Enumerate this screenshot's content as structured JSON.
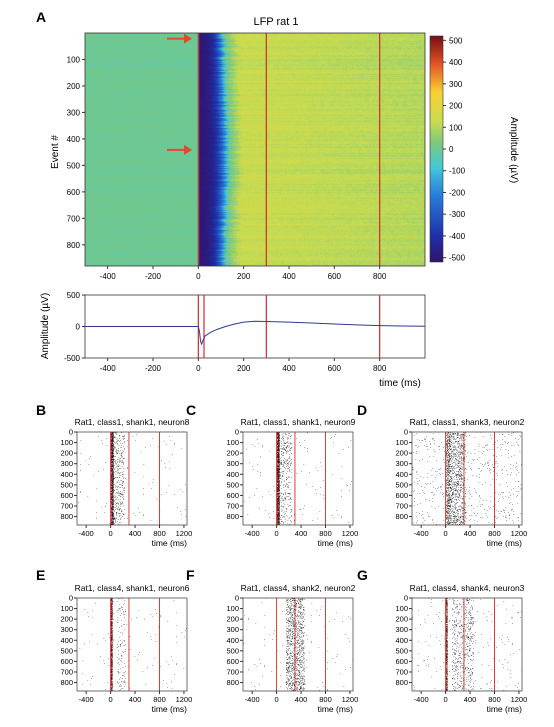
{
  "panel_labels": [
    "A",
    "B",
    "C",
    "D",
    "E",
    "F",
    "G"
  ],
  "colors": {
    "vlines": "#d42a2a",
    "arrow": "#e3482f",
    "trace": "#2b3d8f"
  },
  "chart_data": [
    {
      "id": "A-heatmap",
      "type": "heatmap",
      "title": "LFP rat 1",
      "xlabel": "",
      "ylabel": "Event #",
      "xlim": [
        -500,
        1000
      ],
      "ylim": [
        0,
        880
      ],
      "xticks": [
        -400,
        -200,
        0,
        200,
        400,
        600,
        800
      ],
      "yticks": [
        100,
        200,
        300,
        400,
        500,
        600,
        700,
        800
      ],
      "vlines_ms": [
        0,
        300,
        800
      ],
      "arrow_events": [
        10,
        430
      ],
      "colorbar": {
        "label": "Amplitude (µV)",
        "ticks": [
          500,
          400,
          300,
          200,
          100,
          0,
          -100,
          -200,
          -300,
          -400,
          -500
        ],
        "range": [
          -520,
          520
        ],
        "colormap": "jet"
      },
      "profile": {
        "baseline_uv": 0,
        "onset_ms": 0,
        "negative_peak_uv": -500,
        "negative_until_ms": 120,
        "positive_plateau_uv": 130
      }
    },
    {
      "id": "A-trace",
      "type": "line",
      "xlabel": "time (ms)",
      "ylabel": "Amplitude (µV)",
      "xlim": [
        -500,
        1000
      ],
      "ylim": [
        -500,
        500
      ],
      "xticks": [
        -400,
        -200,
        0,
        200,
        400,
        600,
        800
      ],
      "yticks": [
        500,
        0,
        -500
      ],
      "vlines_ms": [
        0,
        25,
        300,
        800
      ],
      "series": [
        {
          "x": [
            -500,
            -100,
            0,
            5,
            10,
            15,
            20,
            30,
            50,
            80,
            120,
            160,
            200,
            250,
            300,
            400,
            500,
            600,
            700,
            800,
            900,
            1000
          ],
          "y": [
            0,
            0,
            0,
            -80,
            -240,
            -280,
            -220,
            -150,
            -100,
            -50,
            0,
            40,
            70,
            82,
            80,
            70,
            55,
            40,
            25,
            15,
            8,
            5
          ]
        }
      ]
    },
    {
      "id": "B",
      "type": "scatter",
      "title": "Rat1, class1, shank1, neuron8",
      "xlabel": "time (ms)",
      "xlim": [
        -550,
        1250
      ],
      "ylim": [
        0,
        880
      ],
      "xticks": [
        -400,
        0,
        400,
        800,
        1200
      ],
      "yticks": [
        0,
        100,
        200,
        300,
        400,
        500,
        600,
        700,
        800
      ],
      "vlines_ms": [
        0,
        300,
        800
      ],
      "baseline_rate": 0.007,
      "density": [
        [
          0,
          40,
          1.0
        ],
        [
          40,
          220,
          0.1
        ]
      ]
    },
    {
      "id": "C",
      "type": "scatter",
      "title": "Rat1, class1, shank1, neuron9",
      "xlabel": "time (ms)",
      "xlim": [
        -550,
        1250
      ],
      "ylim": [
        0,
        880
      ],
      "xticks": [
        -400,
        0,
        400,
        800,
        1200
      ],
      "yticks": [
        0,
        100,
        200,
        300,
        400,
        500,
        600,
        700,
        800
      ],
      "vlines_ms": [
        0,
        300,
        800
      ],
      "baseline_rate": 0.008,
      "density": [
        [
          0,
          40,
          1.0
        ],
        [
          40,
          250,
          0.08
        ]
      ]
    },
    {
      "id": "D",
      "type": "scatter",
      "title": "Rat1, class1, shank3, neuron2",
      "xlabel": "time (ms)",
      "xlim": [
        -550,
        1250
      ],
      "ylim": [
        0,
        880
      ],
      "xticks": [
        -400,
        0,
        400,
        800,
        1200
      ],
      "yticks": [
        0,
        100,
        200,
        300,
        400,
        500,
        600,
        700,
        800
      ],
      "vlines_ms": [
        0,
        300,
        800
      ],
      "baseline_rate": 0.035,
      "density": [
        [
          0,
          80,
          0.35
        ],
        [
          80,
          320,
          0.18
        ]
      ]
    },
    {
      "id": "E",
      "type": "scatter",
      "title": "Rat1, class4, shank1, neuron6",
      "xlabel": "time (ms)",
      "xlim": [
        -550,
        1250
      ],
      "ylim": [
        0,
        880
      ],
      "xticks": [
        -400,
        0,
        400,
        800,
        1200
      ],
      "yticks": [
        0,
        100,
        200,
        300,
        400,
        500,
        600,
        700,
        800
      ],
      "vlines_ms": [
        0,
        300,
        800
      ],
      "baseline_rate": 0.007,
      "density": [
        [
          0,
          30,
          1.0
        ],
        [
          100,
          250,
          0.04
        ]
      ]
    },
    {
      "id": "F",
      "type": "scatter",
      "title": "Rat1, class4, shank2, neuron2",
      "xlabel": "time (ms)",
      "xlim": [
        -550,
        1250
      ],
      "ylim": [
        0,
        880
      ],
      "xticks": [
        -400,
        0,
        400,
        800,
        1200
      ],
      "yticks": [
        0,
        100,
        200,
        300,
        400,
        500,
        600,
        700,
        800
      ],
      "vlines_ms": [
        0,
        300,
        800
      ],
      "baseline_rate": 0.007,
      "density": [
        [
          150,
          450,
          0.18
        ]
      ]
    },
    {
      "id": "G",
      "type": "scatter",
      "title": "Rat1, class4, shank4, neuron3",
      "xlabel": "time (ms)",
      "xlim": [
        -550,
        1250
      ],
      "ylim": [
        0,
        880
      ],
      "xticks": [
        -400,
        0,
        400,
        800,
        1200
      ],
      "yticks": [
        0,
        100,
        200,
        300,
        400,
        500,
        600,
        700,
        800
      ],
      "vlines_ms": [
        0,
        300,
        800
      ],
      "baseline_rate": 0.012,
      "density": [
        [
          0,
          30,
          0.9
        ],
        [
          100,
          450,
          0.08
        ]
      ]
    }
  ]
}
